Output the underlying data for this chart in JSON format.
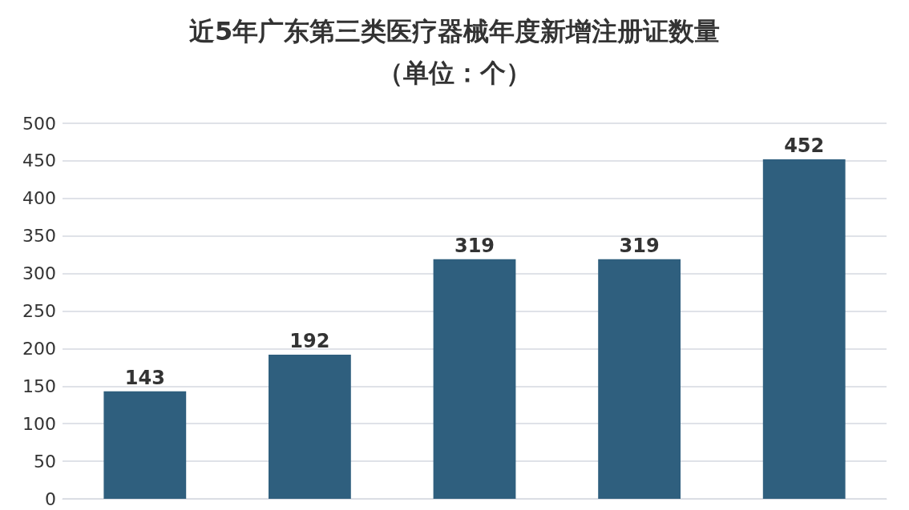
{
  "chart_data": {
    "type": "bar",
    "title": "近5年广东第三类医疗器械年度新增注册证数量",
    "subtitle": "（单位：个）",
    "categories": [
      null,
      null,
      null,
      null,
      null
    ],
    "values": [
      143,
      192,
      319,
      319,
      452
    ],
    "color": "#2f5f7e",
    "ylim": [
      0,
      500
    ],
    "yticks": [
      0,
      50,
      100,
      150,
      200,
      250,
      300,
      350,
      400,
      450,
      500
    ],
    "grid": "y",
    "data_labels": true
  }
}
